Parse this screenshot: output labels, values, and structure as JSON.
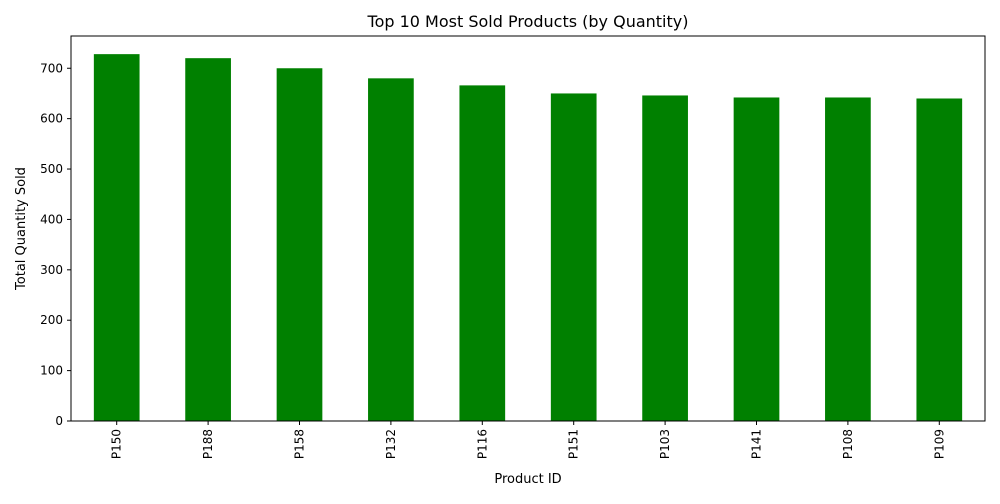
{
  "chart_data": {
    "type": "bar",
    "title": "Top 10 Most Sold Products (by Quantity)",
    "xlabel": "Product ID",
    "ylabel": "Total Quantity Sold",
    "categories": [
      "P150",
      "P188",
      "P158",
      "P132",
      "P116",
      "P151",
      "P103",
      "P141",
      "P108",
      "P109"
    ],
    "values": [
      728,
      720,
      700,
      680,
      666,
      650,
      646,
      642,
      642,
      640
    ],
    "ylim": [
      0,
      764
    ],
    "yticks": [
      0,
      100,
      200,
      300,
      400,
      500,
      600,
      700
    ],
    "bar_color": "#008000",
    "grid": false,
    "legend": "none"
  }
}
